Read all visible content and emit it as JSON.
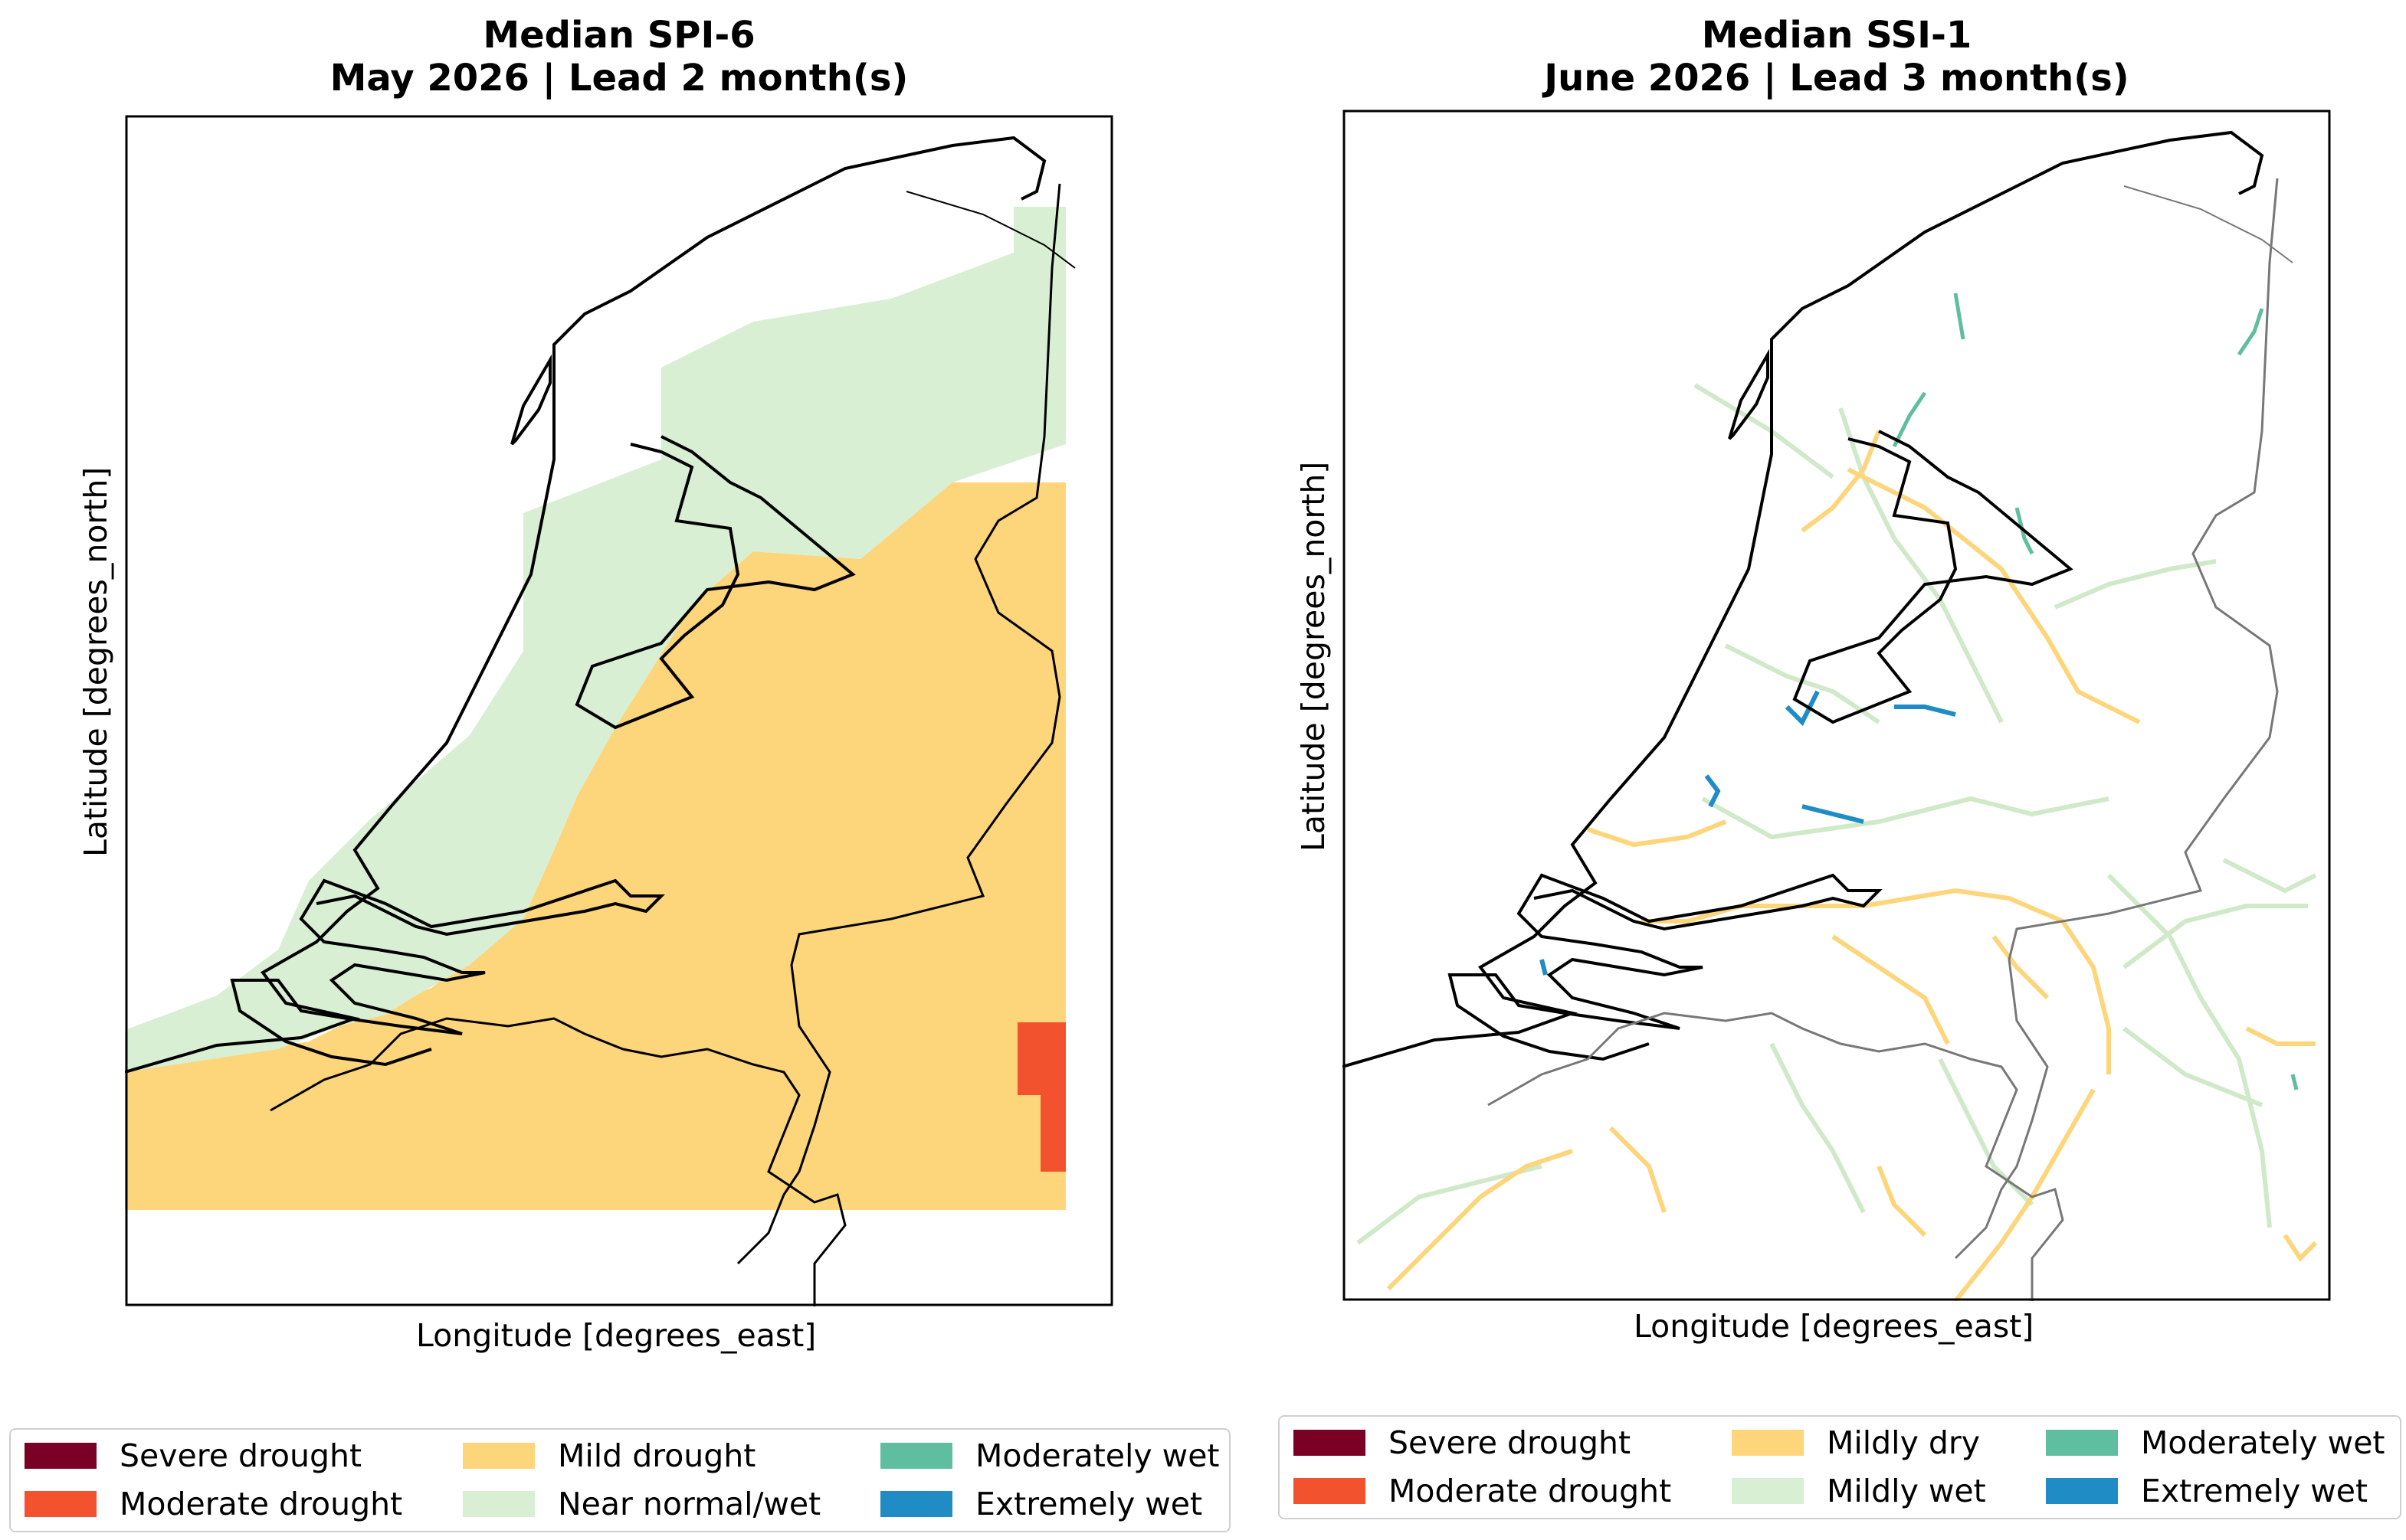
{
  "maps": [
    {
      "title_line1": "Median SPI-6",
      "title_line2": "May 2026 | Lead 2 month(s)",
      "xlabel": "Longitude [degrees_east]",
      "ylabel": "Latitude [degrees_north]",
      "legend": [
        {
          "label": "Severe drought",
          "color": "#7a0026"
        },
        {
          "label": "Moderate drought",
          "color": "#f2522e"
        },
        {
          "label": "Mild drought",
          "color": "#fdd57a"
        },
        {
          "label": "Near normal/wet",
          "color": "#d8efd4"
        },
        {
          "label": "Moderately wet",
          "color": "#5fbea0"
        },
        {
          "label": "Extremely wet",
          "color": "#1f8cc5"
        }
      ]
    },
    {
      "title_line1": "Median SSI-1",
      "title_line2": "June 2026 | Lead 3 month(s)",
      "xlabel": "Longitude [degrees_east]",
      "ylabel": "Latitude [degrees_north]",
      "legend": [
        {
          "label": "Severe drought",
          "color": "#7a0026"
        },
        {
          "label": "Moderate drought",
          "color": "#f2522e"
        },
        {
          "label": "Mildly dry",
          "color": "#fdd57a"
        },
        {
          "label": "Mildly wet",
          "color": "#d8efd4"
        },
        {
          "label": "Moderately wet",
          "color": "#5fbea0"
        },
        {
          "label": "Extremely wet",
          "color": "#1f8cc5"
        }
      ]
    }
  ]
}
